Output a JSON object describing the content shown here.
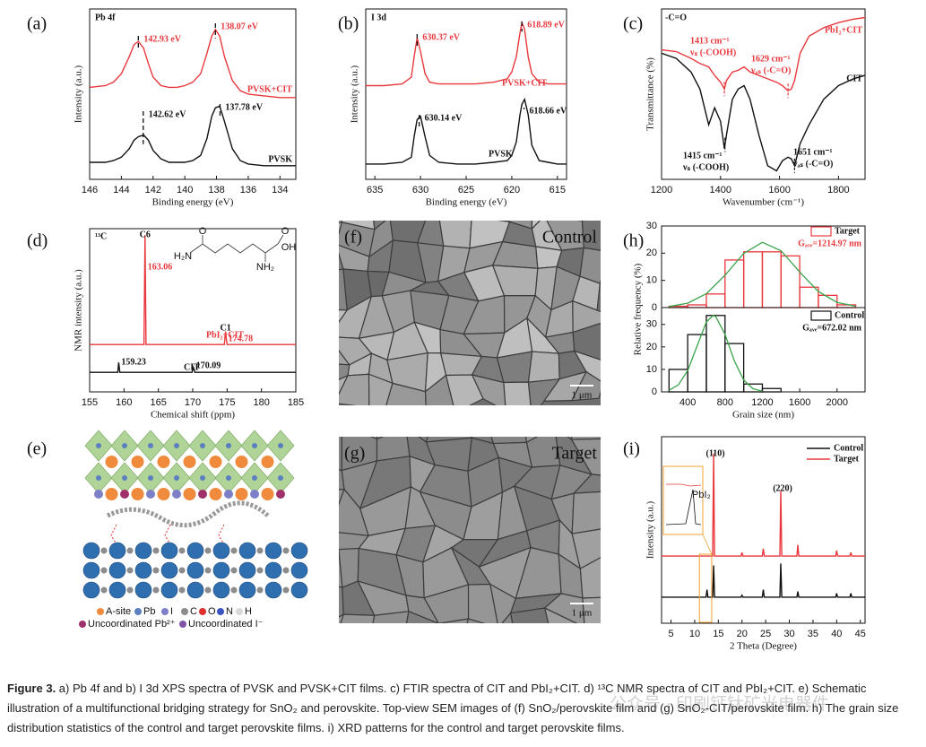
{
  "chart_data": [
    {
      "type": "line",
      "panel_label": "(a)",
      "tag": "Pb 4f",
      "xlabel": "Binding energy (eV)",
      "ylabel": "Intensity (a.u.)",
      "xlim": [
        146,
        133
      ],
      "xticks": [
        146,
        144,
        142,
        140,
        138,
        136,
        134
      ],
      "ylim": [
        0,
        100
      ],
      "x": [
        146,
        145,
        144.5,
        144,
        143.5,
        143.2,
        142.93,
        142.6,
        142.3,
        142,
        141.5,
        141,
        140.5,
        140,
        139.5,
        139,
        138.6,
        138.3,
        138.07,
        137.8,
        137.5,
        137,
        136.5,
        136,
        135,
        134,
        133
      ],
      "series": [
        {
          "name": "PVSK+CIT",
          "color": "#e8383d",
          "values": [
            54,
            55,
            57,
            62,
            72,
            79,
            81,
            77,
            68,
            60,
            55,
            54,
            54,
            55,
            57,
            62,
            74,
            84,
            88,
            84,
            72,
            58,
            52,
            50,
            49,
            48,
            48
          ]
        },
        {
          "name": "PVSK",
          "color": "#111111",
          "values": [
            10,
            10,
            11,
            13,
            18,
            23,
            25,
            26,
            23,
            17,
            12,
            10,
            10,
            10,
            11,
            14,
            24,
            37,
            42,
            43,
            34,
            18,
            11,
            9,
            8,
            8,
            8
          ]
        }
      ],
      "annotations": [
        {
          "x": 142.93,
          "label": "142.93 eV"
        },
        {
          "x": 138.07,
          "label": "138.07 eV"
        },
        {
          "x": 142.62,
          "label": "142.62 eV"
        },
        {
          "x": 137.78,
          "label": "137.78 eV"
        }
      ]
    },
    {
      "type": "line",
      "panel_label": "(b)",
      "tag": "I 3d",
      "xlabel": "Binding energy (eV)",
      "ylabel": "Intensity (a.u.)",
      "xlim": [
        636,
        614
      ],
      "xticks": [
        635,
        630,
        625,
        620,
        615
      ],
      "ylim": [
        0,
        100
      ],
      "x": [
        636,
        634,
        632,
        631,
        630.7,
        630.37,
        630,
        629.5,
        629,
        628,
        626,
        624,
        622,
        620.5,
        620,
        619.5,
        619.1,
        618.89,
        618.6,
        618.2,
        617.8,
        617,
        616,
        615,
        614
      ],
      "series": [
        {
          "name": "PVSK+CIT",
          "color": "#e8383d",
          "values": [
            55,
            55,
            56,
            60,
            72,
            83,
            75,
            62,
            57,
            56,
            56,
            56,
            57,
            59,
            63,
            72,
            86,
            92,
            88,
            72,
            62,
            57,
            56,
            56,
            56
          ]
        },
        {
          "name": "PVSK",
          "color": "#111111",
          "values": [
            9,
            9,
            10,
            13,
            25,
            35,
            37,
            25,
            14,
            10,
            9,
            9,
            10,
            11,
            14,
            22,
            38,
            44,
            47,
            38,
            20,
            11,
            10,
            9,
            9
          ]
        }
      ],
      "annotations": [
        {
          "x": 630.37,
          "label": "630.37 eV"
        },
        {
          "x": 618.89,
          "label": "618.89 eV"
        },
        {
          "x": 630.14,
          "label": "630.14 eV"
        },
        {
          "x": 618.66,
          "label": "618.66 eV"
        }
      ]
    },
    {
      "type": "line",
      "panel_label": "(c)",
      "tag": "-C=O",
      "xlabel": "Wavenumber (cm⁻¹)",
      "ylabel": "Transmittance (%)",
      "xlim": [
        1200,
        1890
      ],
      "xticks": [
        1200,
        1400,
        1600,
        1800
      ],
      "ylim": [
        0,
        100
      ],
      "x": [
        1200,
        1250,
        1300,
        1330,
        1360,
        1380,
        1400,
        1413,
        1420,
        1440,
        1460,
        1480,
        1500,
        1530,
        1560,
        1590,
        1610,
        1629,
        1640,
        1651,
        1670,
        1700,
        1750,
        1800,
        1850,
        1890
      ],
      "series": [
        {
          "name": "PbI₂+CIT",
          "color": "#e8383d",
          "values": [
            76,
            75,
            71,
            68,
            66,
            61,
            57,
            53,
            58,
            63,
            64,
            66,
            63,
            61,
            59,
            57,
            55,
            52,
            53,
            58,
            74,
            84,
            89,
            92,
            94,
            95
          ]
        },
        {
          "name": "CIT",
          "color": "#111111",
          "values": [
            74,
            71,
            63,
            53,
            32,
            42,
            34,
            18,
            26,
            47,
            53,
            55,
            47,
            26,
            8,
            5,
            11,
            13,
            12,
            8,
            21,
            32,
            47,
            55,
            59,
            61
          ]
        }
      ],
      "annotations": [
        {
          "x": 1413,
          "label": "1413 cm⁻¹",
          "mode": "νₛ (-COOH)"
        },
        {
          "x": 1629,
          "label": "1629 cm⁻¹",
          "mode": "νₐₛ (-C=O)"
        },
        {
          "x": 1415,
          "label": "1415 cm⁻¹",
          "mode": "νₛ (-COOH)"
        },
        {
          "x": 1651,
          "label": "1651 cm⁻¹",
          "mode": "νₐₛ (-C=O)"
        }
      ]
    },
    {
      "type": "line",
      "panel_label": "(d)",
      "tag": "¹³C",
      "xlabel": "Chemical shift (ppm)",
      "ylabel": "NMR intensity (a.u.)",
      "xlim": [
        155,
        185
      ],
      "xticks": [
        155,
        160,
        165,
        170,
        175,
        180,
        185
      ],
      "ylim": [
        0,
        100
      ],
      "x": [
        155,
        159.1,
        159.23,
        159.4,
        162.9,
        163.06,
        163.2,
        169.9,
        170.09,
        170.3,
        174.6,
        174.78,
        175,
        185
      ],
      "series": [
        {
          "name": "PbI₂+CIT",
          "color": "#e8383d",
          "values": [
            29,
            29,
            29,
            29,
            29,
            96,
            29,
            29,
            29,
            29,
            29,
            37,
            29,
            29
          ]
        },
        {
          "name": "CIT",
          "color": "#111111",
          "values": [
            12,
            12,
            18,
            12,
            12,
            12,
            12,
            12,
            15,
            12,
            12,
            12,
            12,
            12
          ]
        }
      ],
      "annotations": [
        {
          "x": 163.06,
          "label": "163.06",
          "atom": "C6"
        },
        {
          "x": 174.78,
          "label": "174.78",
          "atom": "C1"
        },
        {
          "x": 159.23,
          "label": "159.23"
        },
        {
          "x": 170.09,
          "label": "170.09"
        }
      ],
      "structure": [
        "H₂N",
        "O",
        "NH₂",
        "O",
        "OH"
      ]
    },
    {
      "type": "histogram",
      "panel_label": "(h)",
      "ylabel": "Relative frequency (%)",
      "name": "Target",
      "color": "#e8383d",
      "bins": [
        200,
        400,
        600,
        800,
        1000,
        1200,
        1400,
        1600,
        1800,
        2000,
        2200
      ],
      "values": [
        0.5,
        1,
        5,
        17.5,
        20.5,
        20.5,
        19,
        7.5,
        4.5,
        1
      ],
      "fit": {
        "color": "#3aa34a",
        "x": [
          200,
          400,
          600,
          800,
          1000,
          1200,
          1400,
          1600,
          1800,
          2000,
          2200
        ],
        "values": [
          0.4,
          1.6,
          5.1,
          11.9,
          19.9,
          24,
          20.9,
          13.1,
          5.9,
          1.9,
          0.5
        ]
      },
      "average_label": "Gₐᵥₑ=1214.97 nm",
      "xlim": [
        120,
        2300
      ],
      "ylim": [
        0,
        30
      ],
      "yticks": [
        0,
        10,
        20,
        30
      ]
    },
    {
      "type": "histogram",
      "xlabel": "Grain size (nm)",
      "name": "Control",
      "color": "#111111",
      "bins": [
        200,
        400,
        600,
        800,
        1000,
        1200,
        1400
      ],
      "values": [
        10,
        25.5,
        34,
        21.5,
        3.5,
        1.5
      ],
      "fit": {
        "color": "#3aa34a",
        "x": [
          200,
          300,
          400,
          500,
          600,
          672,
          700,
          800,
          900,
          1000,
          1100,
          1200
        ],
        "values": [
          0.7,
          3.1,
          9.5,
          20.4,
          31.1,
          34,
          33.5,
          25.6,
          13.8,
          5.3,
          1.4,
          0.3
        ]
      },
      "average_label": "Gₐᵥₑ=672.02 nm",
      "xlim": [
        120,
        2300
      ],
      "xticks": [
        400,
        800,
        1200,
        1600,
        2000
      ],
      "ylim": [
        0,
        37.5
      ],
      "yticks": [
        0,
        10,
        20,
        30
      ]
    },
    {
      "type": "line",
      "panel_label": "(i)",
      "xlabel": "2 Theta (Degree)",
      "ylabel": "Intensity (a.u.)",
      "xlim": [
        3,
        46
      ],
      "xticks": [
        5,
        10,
        15,
        20,
        25,
        30,
        35,
        40,
        45
      ],
      "ylim": [
        0,
        100
      ],
      "x": [
        3,
        12.4,
        12.6,
        12.8,
        13.8,
        14,
        14.2,
        19.8,
        20,
        20.2,
        24.3,
        24.5,
        24.7,
        28,
        28.2,
        28.4,
        31.6,
        31.8,
        32,
        39.8,
        40,
        40.2,
        42.8,
        43,
        43.2,
        46
      ],
      "series": [
        {
          "name": "Control",
          "color": "#111111",
          "values": [
            14,
            14,
            18,
            14,
            14,
            31,
            14,
            14,
            15,
            14,
            14,
            18,
            14,
            14,
            32,
            14,
            14,
            17,
            14,
            14,
            16,
            14,
            14,
            16,
            14,
            14
          ]
        },
        {
          "name": "Target",
          "color": "#e8383d",
          "values": [
            36,
            36,
            36,
            36,
            36,
            91,
            36,
            36,
            38,
            36,
            36,
            40,
            36,
            36,
            71,
            36,
            36,
            42,
            36,
            36,
            39,
            36,
            36,
            38,
            36,
            36
          ]
        }
      ],
      "peak_labels": [
        "(110)",
        "(220)"
      ],
      "inset_label": "PbI₂"
    }
  ],
  "schematic": {
    "panel_label": "(e)",
    "legend": [
      "A-site",
      "Pb",
      "I",
      "C",
      "O",
      "N",
      "H"
    ],
    "uncoordinated": [
      "Uncoordinated Pb²⁺",
      "Uncoordinated I⁻"
    ]
  },
  "images": [
    {
      "panel_label": "(f)",
      "label": "Control",
      "scale": "1 μm"
    },
    {
      "panel_label": "(g)",
      "label": "Target",
      "scale": "1 μm"
    }
  ],
  "caption": {
    "figure": "Figure 3.",
    "text": " a) Pb 4f and b) I 3d XPS spectra of PVSK and PVSK+CIT films. c) FTIR spectra of CIT and PbI₂+CIT. d) ¹³C NMR spectra of CIT and PbI₂+CIT. e) Schematic illustration of a multifunctional bridging strategy for SnO₂ and perovskite. Top-view SEM images of (f) SnO₂/perovskite film and (g) SnO₂-CIT/perovskite film. h) The grain size distribution statistics of the control and target perovskite films. i) XRD patterns for the control and target perovskite films."
  },
  "watermark": "公众号 · 印刷钙钛矿光电器件"
}
